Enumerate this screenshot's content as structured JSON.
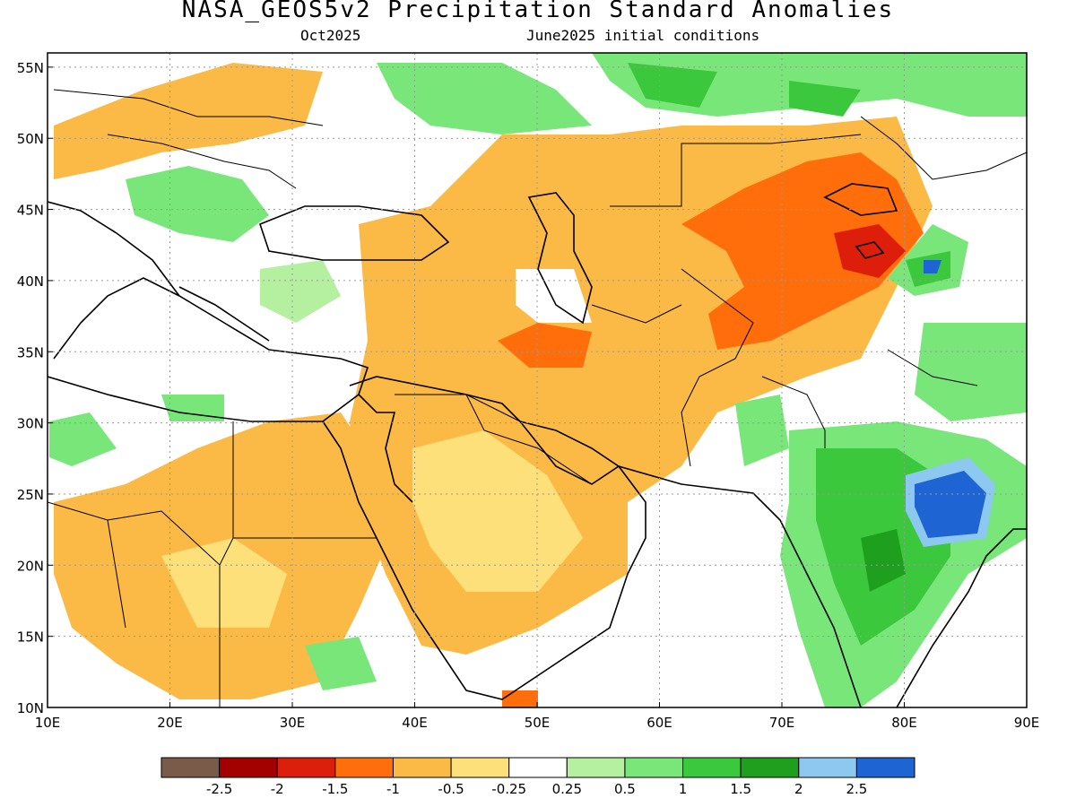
{
  "title": "NASA_GEOS5v2 Precipitation Standard Anomalies",
  "subtitle_left": "Oct2025",
  "subtitle_right": "June2025 initial conditions",
  "map": {
    "lon_range": [
      10,
      90
    ],
    "lat_range": [
      10,
      56
    ],
    "x_ticks": [
      "10E",
      "20E",
      "30E",
      "40E",
      "50E",
      "60E",
      "70E",
      "80E",
      "90E"
    ],
    "y_ticks": [
      "10N",
      "15N",
      "20N",
      "25N",
      "30N",
      "35N",
      "40N",
      "45N",
      "50N",
      "55N"
    ],
    "gridlines": "dotted"
  },
  "legend": {
    "colors": [
      "#7a5a48",
      "#a50000",
      "#dc1e0a",
      "#ff6e0a",
      "#fbb946",
      "#fde07a",
      "#ffffff",
      "#b4f0a0",
      "#78e678",
      "#3cc83c",
      "#1ea01e",
      "#8cc8f0",
      "#1e64d2"
    ],
    "labels": [
      "-2.5",
      "-2",
      "-1.5",
      "-1",
      "-0.5",
      "-0.25",
      "0.25",
      "0.5",
      "1",
      "1.5",
      "2",
      "2.5"
    ]
  }
}
